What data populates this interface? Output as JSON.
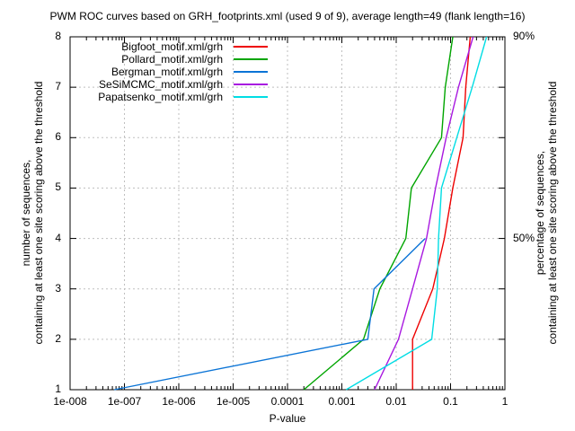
{
  "title": "PWM ROC curves based on GRH_footprints.xml (used 9 of 9), average length=49 (flank length=16)",
  "chart_data": {
    "type": "line",
    "title": "PWM ROC curves based on GRH_footprints.xml (used 9 of 9), average length=49 (flank length=16)",
    "xlabel": "P-value",
    "x_scale": "log",
    "x_range": [
      1e-08,
      1
    ],
    "grid": true,
    "legend_position": "top-left-inside",
    "x_ticks": [
      {
        "label": "1e-008",
        "value": 1e-08
      },
      {
        "label": "1e-007",
        "value": 1e-07
      },
      {
        "label": "1e-006",
        "value": 1e-06
      },
      {
        "label": "1e-005",
        "value": 1e-05
      },
      {
        "label": "0.0001",
        "value": 0.0001
      },
      {
        "label": "0.001",
        "value": 0.001
      },
      {
        "label": "0.01",
        "value": 0.01
      },
      {
        "label": "0.1",
        "value": 0.1
      },
      {
        "label": "1",
        "value": 1
      }
    ],
    "y_left": {
      "label_line1": "number of sequences,",
      "label_line2": "containing at least one site scoring above the threshold",
      "range": [
        1,
        8
      ],
      "ticks": [
        {
          "label": "1",
          "value": 1
        },
        {
          "label": "2",
          "value": 2
        },
        {
          "label": "3",
          "value": 3
        },
        {
          "label": "4",
          "value": 4
        },
        {
          "label": "5",
          "value": 5
        },
        {
          "label": "6",
          "value": 6
        },
        {
          "label": "7",
          "value": 7
        },
        {
          "label": "8",
          "value": 8
        }
      ]
    },
    "y_right": {
      "label_line1": "percentage of sequences,",
      "label_line2": "containing at least one site scoring above the threshold",
      "tick_labels": [
        {
          "text": "90%",
          "value": 8
        },
        {
          "text": "50%",
          "value": 4
        }
      ]
    },
    "series": [
      {
        "name": "Bigfoot_motif.xml/grh",
        "color": "#ee0000",
        "points": [
          [
            0.02,
            1
          ],
          [
            0.02,
            2
          ],
          [
            0.047,
            3
          ],
          [
            0.077,
            4
          ],
          [
            0.11,
            5
          ],
          [
            0.17,
            6
          ],
          [
            0.19,
            7
          ],
          [
            0.23,
            8
          ]
        ]
      },
      {
        "name": "Pollard_motif.xml/grh",
        "color": "#00a500",
        "points": [
          [
            0.0002,
            1
          ],
          [
            0.0025,
            2
          ],
          [
            0.005,
            3
          ],
          [
            0.015,
            4
          ],
          [
            0.019,
            5
          ],
          [
            0.068,
            6
          ],
          [
            0.08,
            7
          ],
          [
            0.11,
            8
          ]
        ]
      },
      {
        "name": "Bergman_motif.xml/grh",
        "color": "#0b74d6",
        "points": [
          [
            6.5e-08,
            1
          ],
          [
            0.003,
            2
          ],
          [
            0.0039,
            3
          ],
          [
            0.034,
            4
          ]
        ]
      },
      {
        "name": "SeSiMCMC_motif.xml/grh",
        "color": "#a818e0",
        "points": [
          [
            0.004,
            1
          ],
          [
            0.011,
            2
          ],
          [
            0.02,
            3
          ],
          [
            0.036,
            4
          ],
          [
            0.053,
            5
          ],
          [
            0.083,
            6
          ],
          [
            0.14,
            7
          ],
          [
            0.26,
            8
          ]
        ]
      },
      {
        "name": "Papatsenko_motif.xml/grh",
        "color": "#00dde4",
        "points": [
          [
            0.0012,
            1
          ],
          [
            0.045,
            2
          ],
          [
            0.057,
            3
          ],
          [
            0.06,
            4
          ],
          [
            0.068,
            5
          ],
          [
            0.13,
            6
          ],
          [
            0.25,
            7
          ],
          [
            0.46,
            8
          ]
        ]
      }
    ]
  }
}
